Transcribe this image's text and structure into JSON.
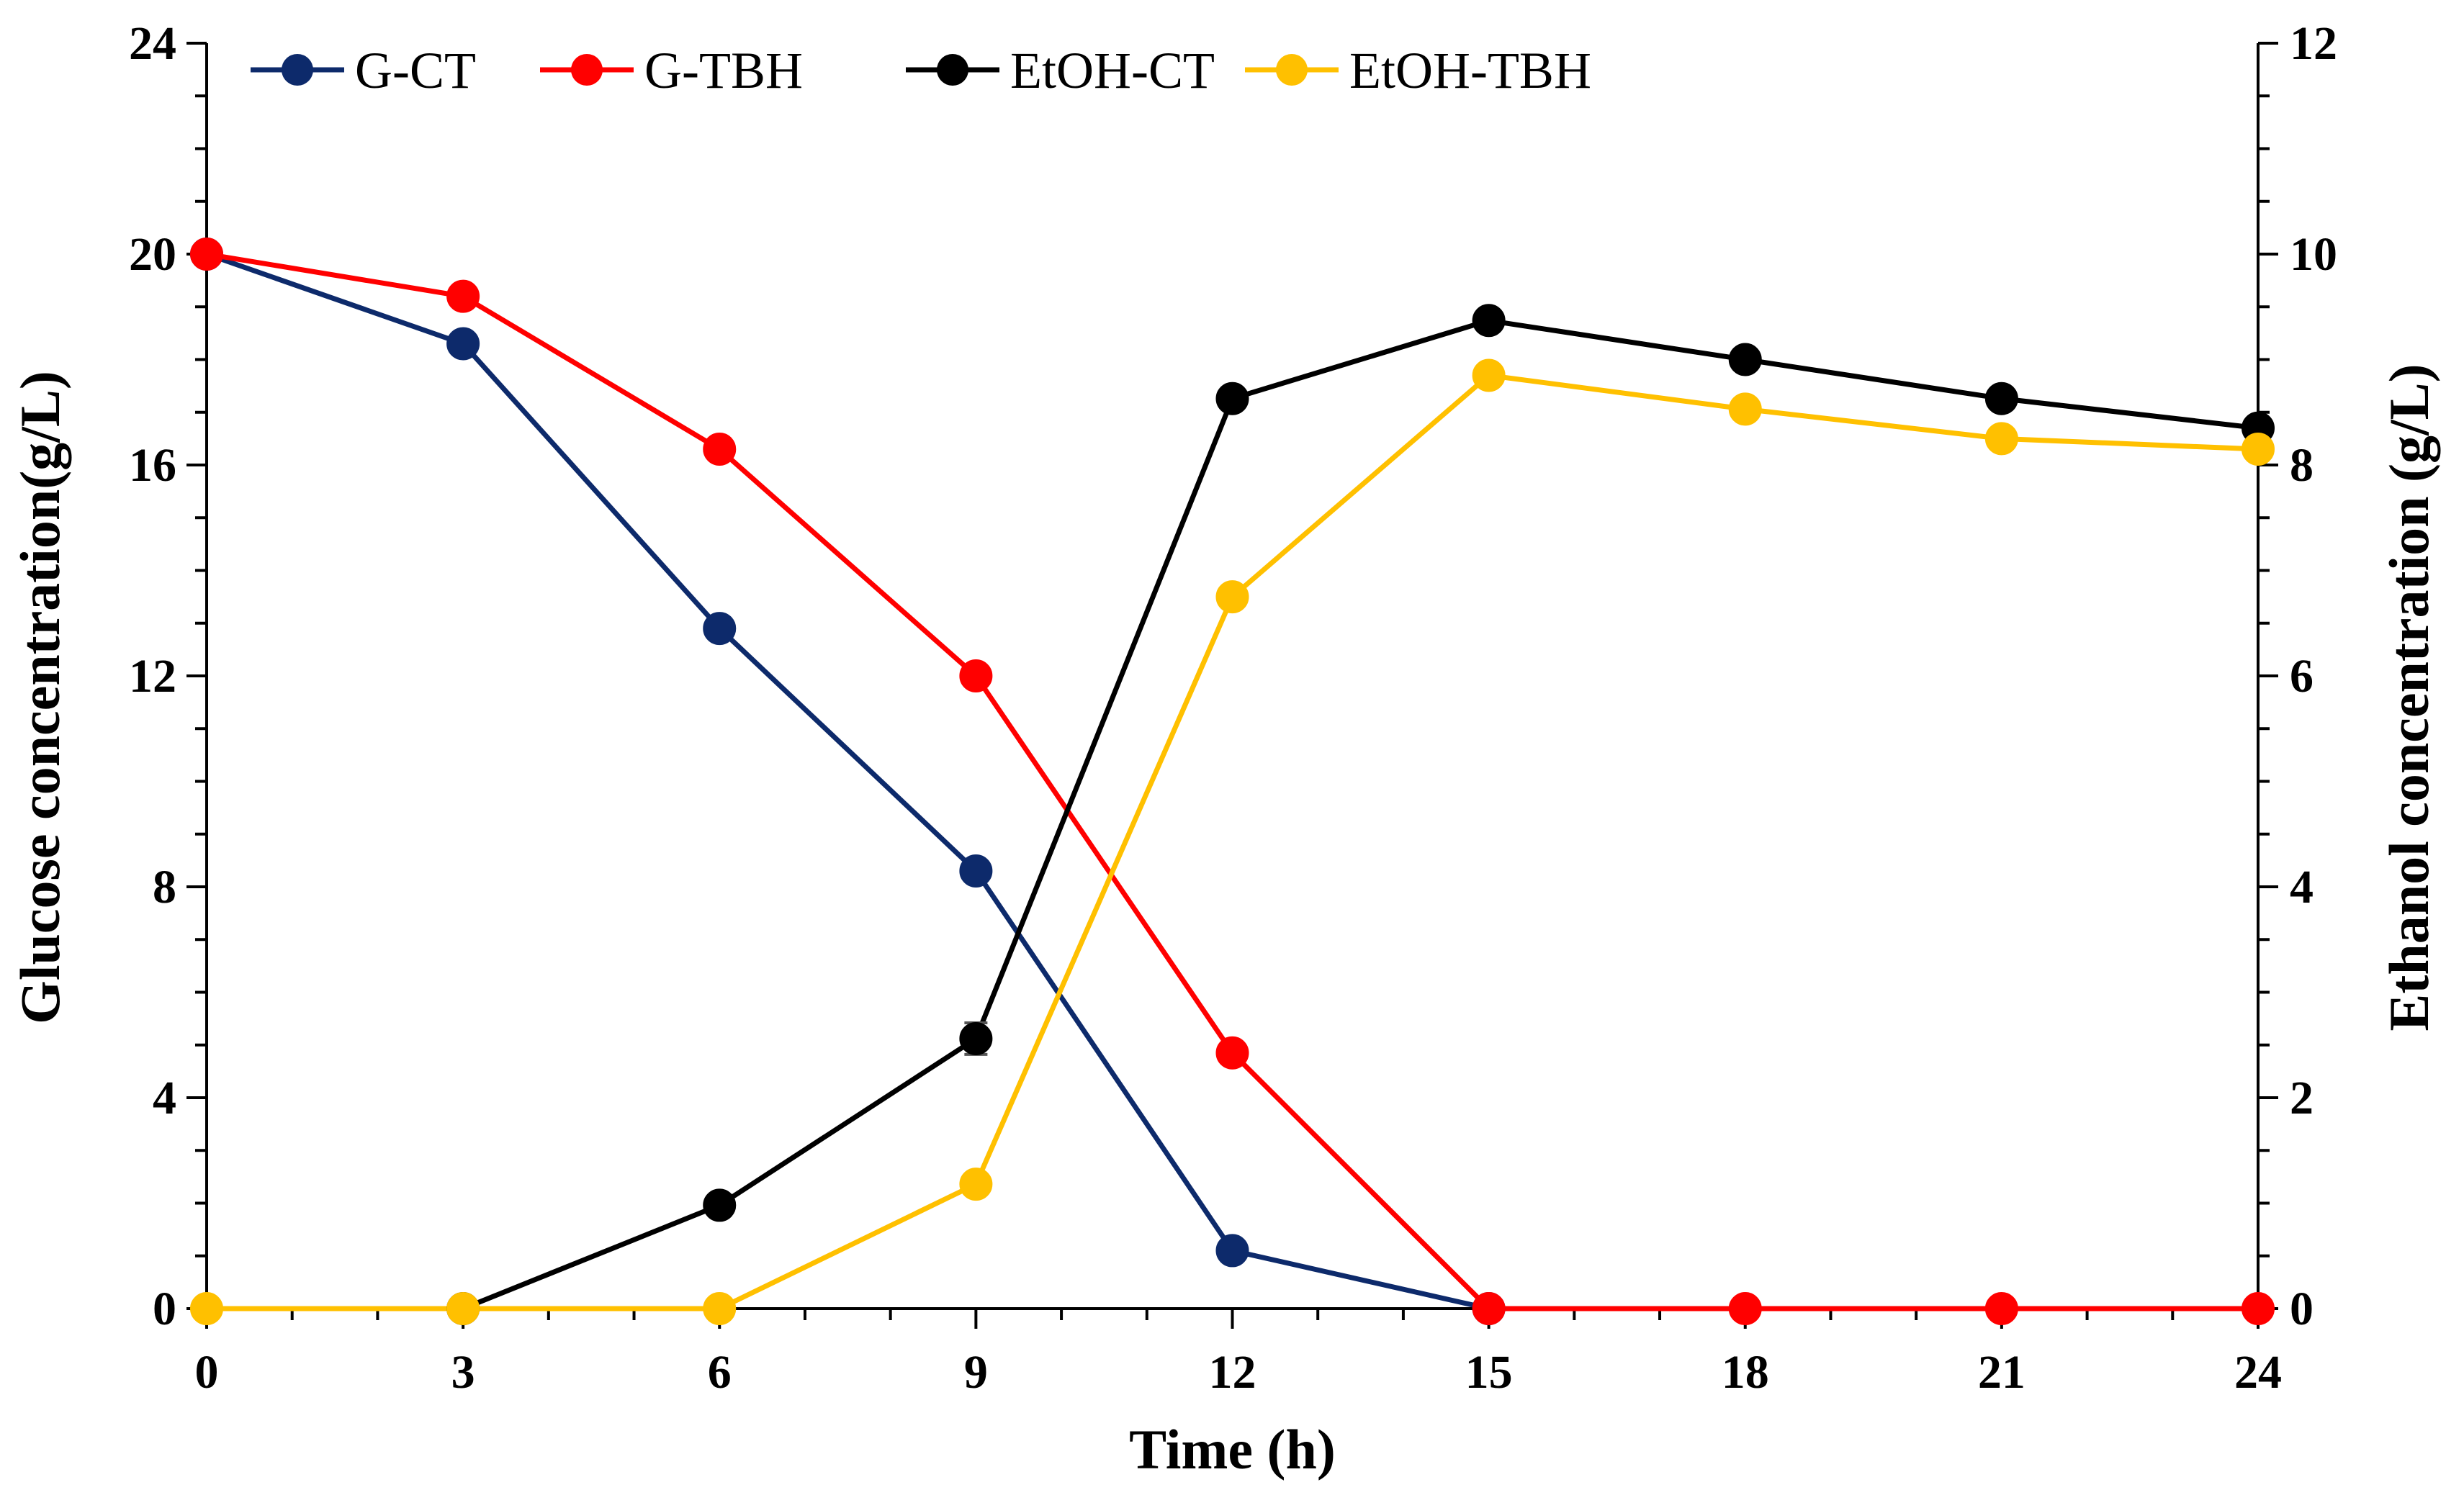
{
  "chart_data": {
    "type": "line",
    "title": "",
    "xlabel": "Time (h)",
    "ylabel_left": "Glucose concentration(g/L)",
    "ylabel_right": "Ethanol concentration (g/L)",
    "x": [
      0,
      3,
      6,
      9,
      12,
      15,
      18,
      21,
      24
    ],
    "x_ticks": [
      "0",
      "3",
      "6",
      "9",
      "12",
      "15",
      "18",
      "21",
      "24"
    ],
    "xlim": [
      0,
      24
    ],
    "ylim_left": [
      0,
      24
    ],
    "ylim_right": [
      0,
      12
    ],
    "y_ticks_left": [
      "0",
      "4",
      "8",
      "12",
      "16",
      "20",
      "24"
    ],
    "y_ticks_right": [
      "0",
      "2",
      "4",
      "6",
      "8",
      "10",
      "12"
    ],
    "legend_position": "top-left",
    "series": [
      {
        "name": "G-CT",
        "axis": "left",
        "color": "#0d2a6b",
        "values": [
          20.0,
          18.3,
          12.9,
          8.3,
          1.1,
          0.0,
          null,
          null,
          null
        ]
      },
      {
        "name": "G-TBH",
        "axis": "left",
        "color": "#ff0000",
        "values": [
          20.0,
          19.2,
          16.3,
          12.0,
          4.85,
          0.0,
          0.0,
          0.0,
          0.0
        ]
      },
      {
        "name": "EtOH-CT",
        "axis": "right",
        "color": "#000000",
        "values": [
          null,
          0.0,
          0.98,
          2.56,
          8.63,
          9.37,
          9.0,
          8.63,
          8.35
        ]
      },
      {
        "name": "EtOH-TBH",
        "axis": "right",
        "color": "#ffc000",
        "values": [
          0.0,
          0.0,
          0.0,
          1.18,
          6.75,
          8.85,
          8.53,
          8.25,
          8.15
        ]
      }
    ],
    "error_bars": [
      {
        "series": "EtOH-CT",
        "x": 9,
        "value": 2.56,
        "error": 0.15
      }
    ]
  }
}
